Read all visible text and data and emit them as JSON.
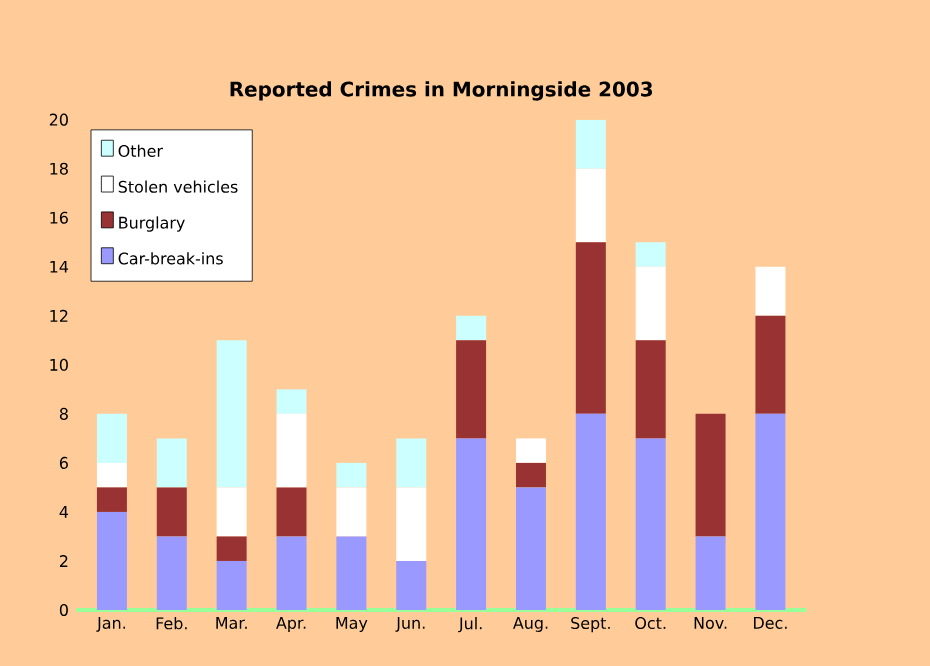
{
  "chart_data": {
    "type": "bar",
    "stacked": true,
    "title": "Reported Crimes in Morningside 2003",
    "categories": [
      "Jan.",
      "Feb.",
      "Mar.",
      "Apr.",
      "May",
      "Jun.",
      "Jul.",
      "Aug.",
      "Sept.",
      "Oct.",
      "Nov.",
      "Dec."
    ],
    "series": [
      {
        "name": "Car-break-ins",
        "color": "#9999ff",
        "values": [
          4,
          3,
          2,
          3,
          3,
          2,
          7,
          5,
          8,
          7,
          3,
          8
        ]
      },
      {
        "name": "Burglary",
        "color": "#993333",
        "values": [
          1,
          2,
          1,
          2,
          0,
          0,
          4,
          1,
          7,
          4,
          5,
          4
        ]
      },
      {
        "name": "Stolen vehicles",
        "color": "#ffffff",
        "values": [
          1,
          0,
          2,
          3,
          2,
          3,
          0,
          1,
          3,
          3,
          0,
          2
        ]
      },
      {
        "name": "Other",
        "color": "#ccffff",
        "values": [
          2,
          2,
          6,
          1,
          1,
          2,
          1,
          0,
          2,
          1,
          0,
          0
        ]
      }
    ],
    "ylim": [
      0,
      20
    ],
    "yticks": [
      0,
      2,
      4,
      6,
      8,
      10,
      12,
      14,
      16,
      18,
      20
    ],
    "grid": false,
    "legend": "top left"
  }
}
